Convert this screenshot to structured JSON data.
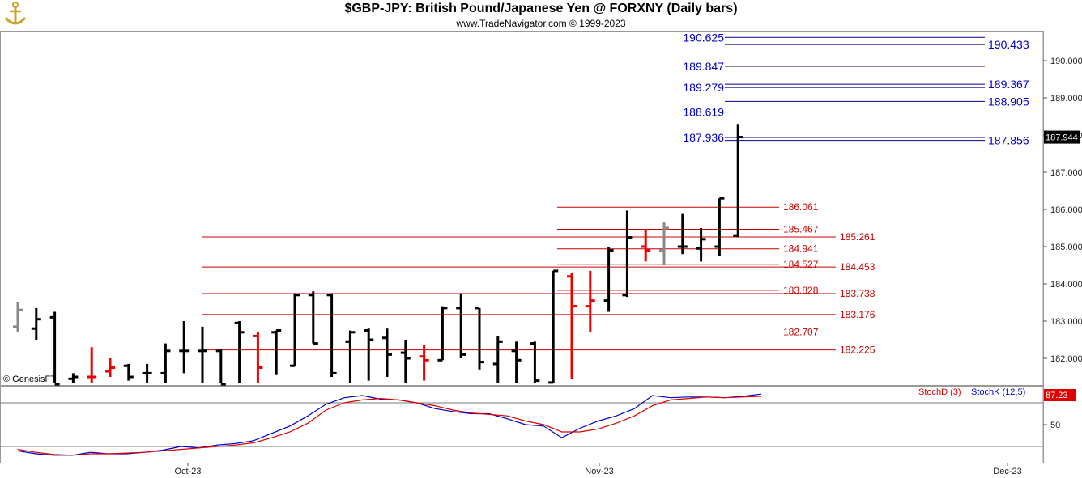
{
  "header": {
    "title": "$GBP-JPY:  British Pound/Japanese Yen @ FORXNY  (Daily bars)",
    "subtitle": "www.TradeNavigator.com © 1999-2023",
    "watermark": "© GenesisFT"
  },
  "colors": {
    "up_bar": "#000000",
    "down_bar": "#ee0000",
    "neutral_bar": "#888888",
    "projection_line_blue": "#00008b",
    "projection_label_blue": "#0000cc",
    "level_line_red": "#cc0000",
    "stoch_k": "#0000cc",
    "stoch_d": "#dd0000",
    "last_price_badge": "#000000",
    "stoch_badge": "#dd0000"
  },
  "chart_data": [
    {
      "type": "ohlc",
      "panel": "price",
      "y_axis": {
        "min": 181.3,
        "max": 190.8,
        "ticks": [
          "182.000",
          "183.000",
          "184.000",
          "185.000",
          "186.000",
          "187.000",
          "188.000",
          "189.000",
          "190.000"
        ],
        "side": "right"
      },
      "x_axis": {
        "labels": [
          "Oct-23",
          "Nov-23",
          "Dec-23"
        ]
      },
      "last_price_label": "187.944",
      "bars": [
        {
          "o": 182.85,
          "h": 183.5,
          "l": 182.7,
          "c": 183.3,
          "color": "neutral"
        },
        {
          "o": 182.8,
          "h": 183.35,
          "l": 182.5,
          "c": 183.05,
          "color": "up"
        },
        {
          "o": 183.1,
          "h": 183.25,
          "l": 181.3,
          "c": 181.3,
          "color": "up"
        },
        {
          "o": 181.45,
          "h": 181.6,
          "l": 181.3,
          "c": 181.5,
          "color": "up"
        },
        {
          "o": 181.5,
          "h": 182.3,
          "l": 181.3,
          "c": 181.5,
          "color": "down"
        },
        {
          "o": 181.65,
          "h": 182.0,
          "l": 181.5,
          "c": 181.75,
          "color": "down"
        },
        {
          "o": 181.8,
          "h": 181.85,
          "l": 181.4,
          "c": 181.5,
          "color": "up"
        },
        {
          "o": 181.6,
          "h": 181.85,
          "l": 181.3,
          "c": 181.6,
          "color": "up"
        },
        {
          "o": 181.6,
          "h": 182.4,
          "l": 181.3,
          "c": 182.2,
          "color": "up"
        },
        {
          "o": 182.2,
          "h": 183.0,
          "l": 181.6,
          "c": 182.2,
          "color": "up"
        },
        {
          "o": 182.2,
          "h": 182.85,
          "l": 181.3,
          "c": 182.2,
          "color": "up"
        },
        {
          "o": 182.2,
          "h": 182.25,
          "l": 181.3,
          "c": 181.3,
          "color": "up"
        },
        {
          "o": 182.95,
          "h": 183.0,
          "l": 181.3,
          "c": 182.7,
          "color": "up"
        },
        {
          "o": 182.6,
          "h": 182.7,
          "l": 181.3,
          "c": 181.75,
          "color": "down"
        },
        {
          "o": 182.7,
          "h": 182.75,
          "l": 181.55,
          "c": 182.75,
          "color": "up"
        },
        {
          "o": 181.8,
          "h": 183.75,
          "l": 181.8,
          "c": 183.7,
          "color": "up"
        },
        {
          "o": 183.7,
          "h": 183.8,
          "l": 182.4,
          "c": 182.4,
          "color": "up"
        },
        {
          "o": 183.7,
          "h": 183.75,
          "l": 181.5,
          "c": 181.6,
          "color": "up"
        },
        {
          "o": 182.45,
          "h": 182.75,
          "l": 181.3,
          "c": 182.7,
          "color": "up"
        },
        {
          "o": 182.75,
          "h": 182.8,
          "l": 181.4,
          "c": 182.5,
          "color": "up"
        },
        {
          "o": 182.55,
          "h": 182.8,
          "l": 181.5,
          "c": 182.1,
          "color": "up"
        },
        {
          "o": 182.15,
          "h": 182.5,
          "l": 181.3,
          "c": 182.0,
          "color": "up"
        },
        {
          "o": 182.05,
          "h": 182.35,
          "l": 181.4,
          "c": 181.95,
          "color": "down"
        },
        {
          "o": 181.95,
          "h": 183.4,
          "l": 181.95,
          "c": 183.35,
          "color": "up"
        },
        {
          "o": 183.35,
          "h": 183.75,
          "l": 182.0,
          "c": 182.1,
          "color": "up"
        },
        {
          "o": 183.35,
          "h": 183.35,
          "l": 181.7,
          "c": 181.9,
          "color": "up"
        },
        {
          "o": 181.85,
          "h": 182.6,
          "l": 181.3,
          "c": 182.45,
          "color": "up"
        },
        {
          "o": 182.2,
          "h": 182.45,
          "l": 181.3,
          "c": 181.95,
          "color": "up"
        },
        {
          "o": 182.4,
          "h": 182.45,
          "l": 181.3,
          "c": 181.4,
          "color": "up"
        },
        {
          "o": 181.35,
          "h": 184.35,
          "l": 181.3,
          "c": 184.35,
          "color": "up"
        },
        {
          "o": 184.2,
          "h": 184.3,
          "l": 181.45,
          "c": 183.4,
          "color": "down"
        },
        {
          "o": 183.4,
          "h": 184.35,
          "l": 182.7,
          "c": 183.55,
          "color": "down"
        },
        {
          "o": 183.55,
          "h": 185.0,
          "l": 183.25,
          "c": 184.9,
          "color": "up"
        },
        {
          "o": 183.7,
          "h": 185.97,
          "l": 183.65,
          "c": 185.25,
          "color": "up"
        },
        {
          "o": 185.0,
          "h": 185.47,
          "l": 184.6,
          "c": 184.9,
          "color": "down"
        },
        {
          "o": 184.9,
          "h": 185.65,
          "l": 184.5,
          "c": 185.5,
          "color": "neutral"
        },
        {
          "o": 185.0,
          "h": 185.9,
          "l": 184.8,
          "c": 185.0,
          "color": "up"
        },
        {
          "o": 184.95,
          "h": 185.5,
          "l": 184.6,
          "c": 185.2,
          "color": "up"
        },
        {
          "o": 185.0,
          "h": 186.3,
          "l": 184.75,
          "c": 186.3,
          "color": "up"
        },
        {
          "o": 185.3,
          "h": 188.3,
          "l": 185.25,
          "c": 187.944,
          "color": "up"
        }
      ],
      "projection_levels_blue": [
        {
          "label": "190.625",
          "value": 190.625,
          "side": "left"
        },
        {
          "label": "190.433",
          "value": 190.433,
          "side": "right"
        },
        {
          "label": "189.847",
          "value": 189.847,
          "side": "left"
        },
        {
          "label": "189.367",
          "value": 189.367,
          "side": "right"
        },
        {
          "label": "189.279",
          "value": 189.279,
          "side": "left"
        },
        {
          "label": "188.905",
          "value": 188.905,
          "side": "right"
        },
        {
          "label": "188.619",
          "value": 188.619,
          "side": "left"
        },
        {
          "label": "187.936",
          "value": 187.936,
          "side": "left"
        },
        {
          "label": "187.856",
          "value": 187.856,
          "side": "right"
        }
      ],
      "support_levels_red": [
        {
          "label": "186.061",
          "value": 186.061,
          "from_bar": 29,
          "text_col": "mid"
        },
        {
          "label": "185.467",
          "value": 185.467,
          "from_bar": 29,
          "text_col": "mid"
        },
        {
          "label": "185.261",
          "value": 185.261,
          "from_bar": 10,
          "text_col": "right"
        },
        {
          "label": "184.941",
          "value": 184.941,
          "from_bar": 29,
          "text_col": "mid"
        },
        {
          "label": "184.527",
          "value": 184.527,
          "from_bar": 29,
          "text_col": "mid"
        },
        {
          "label": "184.453",
          "value": 184.453,
          "from_bar": 10,
          "text_col": "right"
        },
        {
          "label": "183.828",
          "value": 183.828,
          "from_bar": 29,
          "text_col": "mid"
        },
        {
          "label": "183.738",
          "value": 183.738,
          "from_bar": 10,
          "text_col": "right"
        },
        {
          "label": "183.176",
          "value": 183.176,
          "from_bar": 10,
          "text_col": "right"
        },
        {
          "label": "182.707",
          "value": 182.707,
          "from_bar": 29,
          "text_col": "mid"
        },
        {
          "label": "182.225",
          "value": 182.225,
          "from_bar": 10,
          "text_col": "right"
        }
      ]
    },
    {
      "type": "line",
      "panel": "stochastic",
      "y_axis": {
        "min": 0,
        "max": 100,
        "ticks": [
          "50"
        ],
        "reference_lines": [
          20,
          80
        ]
      },
      "last_value_label": "87.23",
      "legend": [
        {
          "name": "StochD (3)",
          "color": "#dd0000"
        },
        {
          "name": "StochK (12,5)",
          "color": "#0000cc"
        }
      ],
      "series": [
        {
          "name": "StochK (12,5)",
          "values": [
            14,
            10,
            8,
            8,
            12,
            10,
            10,
            12,
            15,
            20,
            18,
            22,
            24,
            28,
            38,
            48,
            62,
            78,
            87,
            90,
            85,
            84,
            80,
            72,
            68,
            65,
            65,
            58,
            50,
            48,
            32,
            45,
            55,
            62,
            72,
            90,
            87,
            88,
            88,
            87,
            89,
            92
          ]
        },
        {
          "name": "StochD (3)",
          "values": [
            16,
            12,
            9,
            8,
            10,
            10,
            11,
            12,
            14,
            16,
            18,
            20,
            22,
            25,
            32,
            40,
            52,
            70,
            80,
            84,
            86,
            84,
            80,
            76,
            70,
            66,
            64,
            62,
            55,
            50,
            40,
            40,
            44,
            52,
            62,
            76,
            84,
            86,
            88,
            87,
            88,
            89
          ]
        }
      ]
    }
  ]
}
